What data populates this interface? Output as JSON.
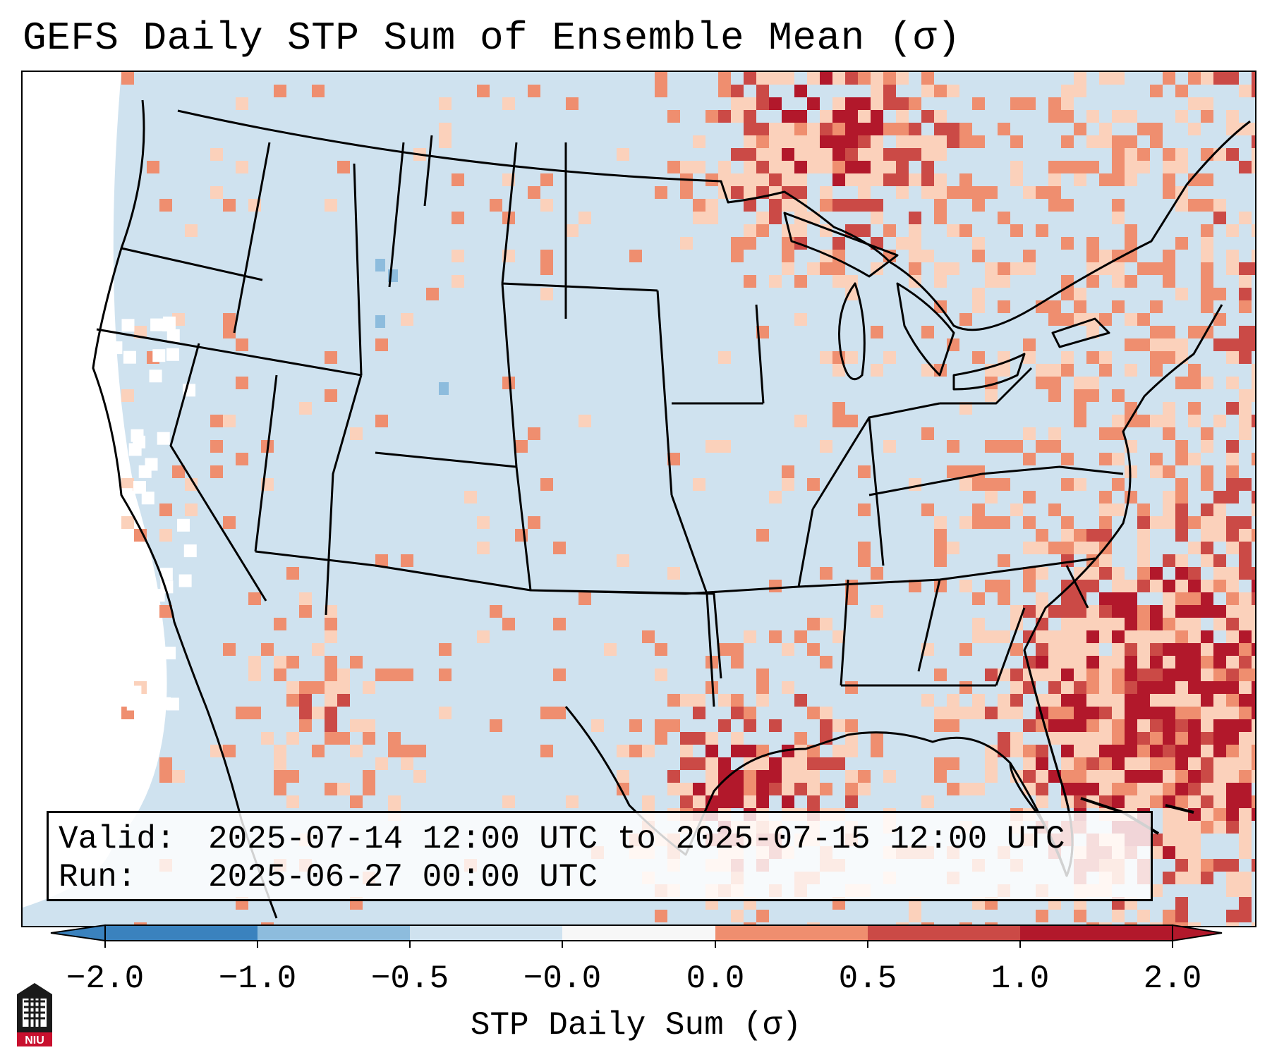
{
  "title": "GEFS Daily STP Sum of Ensemble Mean (σ)",
  "info": {
    "valid_label": "Valid:",
    "valid_value": "2025-07-14 12:00 UTC to 2025-07-15 12:00 UTC",
    "run_label": "Run:",
    "run_value": "2025-06-27 00:00 UTC"
  },
  "colorbar": {
    "label": "STP Daily Sum (σ)",
    "ticks": [
      "−2.0",
      "−1.0",
      "−0.5",
      "−0.0",
      "0.0",
      "0.5",
      "1.0",
      "2.0"
    ],
    "colors": [
      "#3a82be",
      "#8dbcdd",
      "#cfe2ef",
      "#f7f7f7",
      "#fbd1bb",
      "#ef8e6f",
      "#cb4a46",
      "#b2182b"
    ]
  },
  "logo": {
    "text": "NIU"
  },
  "colors": {
    "background_shade": "#cfe2ef",
    "slight_positive": "#fbd1bb",
    "moderate_positive": "#ef8e6f",
    "strong_positive": "#cb4a46",
    "very_strong_positive": "#b2182b",
    "slight_negative": "#8dbcdd",
    "boundary": "#000000"
  }
}
